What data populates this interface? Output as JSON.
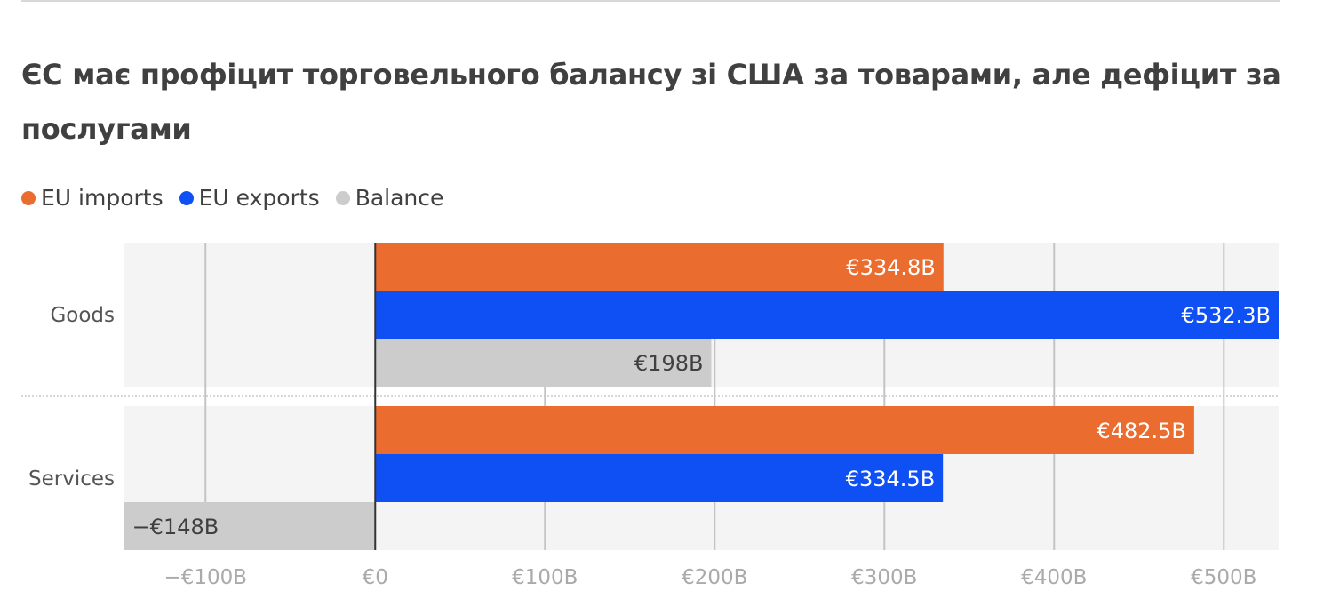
{
  "chart_data": {
    "type": "bar",
    "orientation": "horizontal",
    "title": "ЄС має профіцит торговельного балансу зі США за товарами, але дефіцит за послугами",
    "categories": [
      "Goods",
      "Services"
    ],
    "series": [
      {
        "name": "EU imports",
        "color": "#ea6c2e",
        "values": [
          334.8,
          482.5
        ],
        "labels": [
          "€334.8B",
          "€482.5B"
        ]
      },
      {
        "name": "EU exports",
        "color": "#0f50f5",
        "values": [
          532.3,
          334.5
        ],
        "labels": [
          "€532.3B",
          "€334.5B"
        ]
      },
      {
        "name": "Balance",
        "color": "#cccccc",
        "values": [
          198,
          -148
        ],
        "labels": [
          "€198B",
          "−€148B"
        ]
      }
    ],
    "xlim": [
      -148.3,
      532.3
    ],
    "xticks": [
      -100,
      0,
      100,
      200,
      300,
      400,
      500
    ],
    "xtick_labels": [
      "−€100B",
      "€0",
      "€100B",
      "€200B",
      "€300B",
      "€400B",
      "€500B"
    ],
    "xlabel": "",
    "ylabel": "",
    "grid": true,
    "legend_position": "top-left"
  }
}
